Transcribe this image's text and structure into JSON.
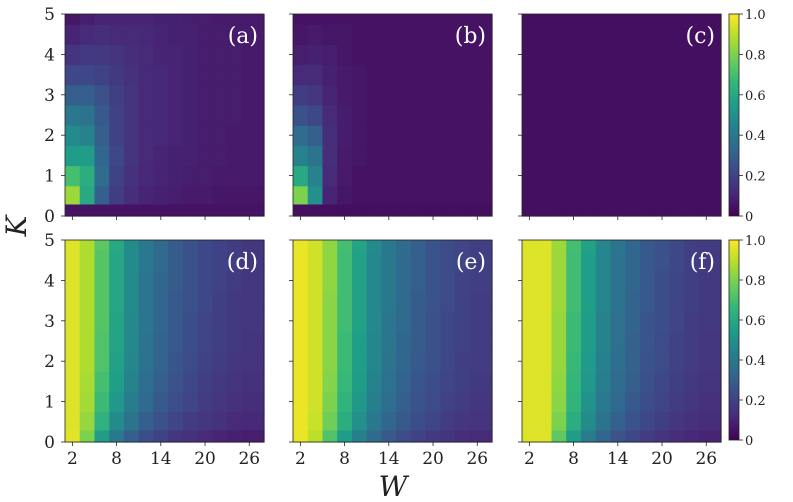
{
  "chart_data": {
    "type": "heatmap",
    "xlabel": "W",
    "ylabel": "K",
    "x_tick_labels": [
      "2",
      "8",
      "14",
      "20",
      "26"
    ],
    "x_tick_values": [
      2,
      8,
      14,
      20,
      26
    ],
    "y_tick_labels": [
      "0",
      "1",
      "2",
      "3",
      "4",
      "5"
    ],
    "y_tick_values": [
      0,
      1,
      2,
      3,
      4,
      5
    ],
    "xlim": [
      1,
      28
    ],
    "ylim": [
      0,
      5
    ],
    "x_centers": [
      2,
      4,
      6,
      8,
      10,
      12,
      14,
      16,
      18,
      20,
      22,
      24,
      26
    ],
    "k_centers": [
      0.1,
      0.5,
      1.0,
      1.5,
      2.0,
      2.5,
      3.0,
      3.5,
      4.0,
      4.5,
      5.0
    ],
    "colorbar": {
      "range": [
        0,
        1
      ],
      "tick_labels": [
        "0",
        "0.2",
        "0.4",
        "0.6",
        "0.8",
        "1.0"
      ],
      "tick_values": [
        0,
        0.2,
        0.4,
        0.6,
        0.8,
        1.0
      ]
    },
    "colormap_stops": [
      "#440154",
      "#482878",
      "#3e4989",
      "#31688e",
      "#26828e",
      "#1f9e89",
      "#35b779",
      "#6ece58",
      "#b5de2b",
      "#fde725"
    ],
    "panels": [
      {
        "label": "(a)",
        "values": [
          [
            0.05,
            0.05,
            0.05,
            0.05,
            0.05,
            0.05,
            0.05,
            0.05,
            0.05,
            0.05,
            0.05,
            0.05,
            0.05
          ],
          [
            0.85,
            0.6,
            0.3,
            0.18,
            0.13,
            0.1,
            0.09,
            0.08,
            0.07,
            0.07,
            0.06,
            0.06,
            0.06
          ],
          [
            0.7,
            0.62,
            0.35,
            0.2,
            0.14,
            0.11,
            0.1,
            0.09,
            0.08,
            0.08,
            0.07,
            0.07,
            0.07
          ],
          [
            0.55,
            0.55,
            0.33,
            0.22,
            0.15,
            0.12,
            0.1,
            0.09,
            0.09,
            0.08,
            0.08,
            0.07,
            0.07
          ],
          [
            0.48,
            0.45,
            0.3,
            0.2,
            0.15,
            0.12,
            0.11,
            0.1,
            0.09,
            0.08,
            0.08,
            0.07,
            0.07
          ],
          [
            0.4,
            0.38,
            0.28,
            0.2,
            0.15,
            0.12,
            0.11,
            0.1,
            0.09,
            0.08,
            0.08,
            0.08,
            0.07
          ],
          [
            0.3,
            0.3,
            0.25,
            0.19,
            0.15,
            0.12,
            0.11,
            0.1,
            0.09,
            0.08,
            0.08,
            0.08,
            0.07
          ],
          [
            0.22,
            0.22,
            0.2,
            0.17,
            0.14,
            0.12,
            0.11,
            0.1,
            0.09,
            0.08,
            0.08,
            0.08,
            0.07
          ],
          [
            0.15,
            0.17,
            0.17,
            0.15,
            0.13,
            0.12,
            0.1,
            0.1,
            0.09,
            0.08,
            0.08,
            0.08,
            0.07
          ],
          [
            0.1,
            0.12,
            0.13,
            0.12,
            0.12,
            0.11,
            0.1,
            0.09,
            0.09,
            0.08,
            0.08,
            0.07,
            0.07
          ],
          [
            0.06,
            0.08,
            0.1,
            0.1,
            0.1,
            0.1,
            0.09,
            0.09,
            0.08,
            0.08,
            0.07,
            0.07,
            0.07
          ]
        ]
      },
      {
        "label": "(b)",
        "values": [
          [
            0.04,
            0.04,
            0.04,
            0.04,
            0.04,
            0.04,
            0.04,
            0.04,
            0.04,
            0.04,
            0.04,
            0.04,
            0.04
          ],
          [
            0.8,
            0.5,
            0.1,
            0.06,
            0.05,
            0.05,
            0.05,
            0.05,
            0.05,
            0.05,
            0.05,
            0.05,
            0.05
          ],
          [
            0.6,
            0.45,
            0.12,
            0.07,
            0.05,
            0.05,
            0.05,
            0.05,
            0.05,
            0.05,
            0.05,
            0.05,
            0.05
          ],
          [
            0.45,
            0.38,
            0.13,
            0.07,
            0.06,
            0.05,
            0.05,
            0.05,
            0.05,
            0.05,
            0.05,
            0.05,
            0.05
          ],
          [
            0.35,
            0.3,
            0.13,
            0.08,
            0.06,
            0.05,
            0.05,
            0.05,
            0.05,
            0.05,
            0.05,
            0.05,
            0.05
          ],
          [
            0.25,
            0.22,
            0.12,
            0.08,
            0.06,
            0.05,
            0.05,
            0.05,
            0.05,
            0.05,
            0.05,
            0.05,
            0.05
          ],
          [
            0.18,
            0.16,
            0.1,
            0.07,
            0.06,
            0.05,
            0.05,
            0.05,
            0.05,
            0.05,
            0.05,
            0.05,
            0.05
          ],
          [
            0.12,
            0.12,
            0.09,
            0.07,
            0.06,
            0.05,
            0.05,
            0.05,
            0.05,
            0.05,
            0.05,
            0.05,
            0.05
          ],
          [
            0.08,
            0.09,
            0.08,
            0.06,
            0.05,
            0.05,
            0.05,
            0.05,
            0.05,
            0.05,
            0.05,
            0.05,
            0.05
          ],
          [
            0.06,
            0.07,
            0.06,
            0.06,
            0.05,
            0.05,
            0.05,
            0.05,
            0.05,
            0.05,
            0.05,
            0.05,
            0.05
          ],
          [
            0.05,
            0.05,
            0.05,
            0.05,
            0.05,
            0.05,
            0.05,
            0.05,
            0.05,
            0.05,
            0.05,
            0.05,
            0.05
          ]
        ]
      },
      {
        "label": "(c)",
        "values": [
          [
            0.04,
            0.04,
            0.04,
            0.04,
            0.04,
            0.04,
            0.04,
            0.04,
            0.04,
            0.04,
            0.04,
            0.04,
            0.04
          ],
          [
            0.04,
            0.04,
            0.04,
            0.04,
            0.04,
            0.04,
            0.04,
            0.04,
            0.04,
            0.04,
            0.04,
            0.04,
            0.04
          ],
          [
            0.04,
            0.04,
            0.04,
            0.04,
            0.04,
            0.04,
            0.04,
            0.04,
            0.04,
            0.04,
            0.04,
            0.04,
            0.04
          ],
          [
            0.04,
            0.04,
            0.04,
            0.04,
            0.04,
            0.04,
            0.04,
            0.04,
            0.04,
            0.04,
            0.04,
            0.04,
            0.04
          ],
          [
            0.04,
            0.04,
            0.04,
            0.04,
            0.04,
            0.04,
            0.04,
            0.04,
            0.04,
            0.04,
            0.04,
            0.04,
            0.04
          ],
          [
            0.04,
            0.04,
            0.04,
            0.04,
            0.04,
            0.04,
            0.04,
            0.04,
            0.04,
            0.04,
            0.04,
            0.04,
            0.04
          ],
          [
            0.04,
            0.04,
            0.04,
            0.04,
            0.04,
            0.04,
            0.04,
            0.04,
            0.04,
            0.04,
            0.04,
            0.04,
            0.04
          ],
          [
            0.04,
            0.04,
            0.04,
            0.04,
            0.04,
            0.04,
            0.04,
            0.04,
            0.04,
            0.04,
            0.04,
            0.04,
            0.04
          ],
          [
            0.04,
            0.04,
            0.04,
            0.04,
            0.04,
            0.04,
            0.04,
            0.04,
            0.04,
            0.04,
            0.04,
            0.04,
            0.04
          ],
          [
            0.04,
            0.04,
            0.04,
            0.04,
            0.04,
            0.04,
            0.04,
            0.04,
            0.04,
            0.04,
            0.04,
            0.04,
            0.04
          ],
          [
            0.04,
            0.04,
            0.04,
            0.04,
            0.04,
            0.04,
            0.04,
            0.04,
            0.04,
            0.04,
            0.04,
            0.04,
            0.04
          ]
        ]
      },
      {
        "label": "(d)",
        "values": [
          [
            0.96,
            0.8,
            0.55,
            0.4,
            0.3,
            0.24,
            0.2,
            0.16,
            0.14,
            0.12,
            0.1,
            0.09,
            0.08
          ],
          [
            0.95,
            0.84,
            0.64,
            0.48,
            0.38,
            0.3,
            0.25,
            0.21,
            0.18,
            0.16,
            0.14,
            0.12,
            0.11
          ],
          [
            0.95,
            0.86,
            0.68,
            0.53,
            0.42,
            0.34,
            0.28,
            0.24,
            0.21,
            0.18,
            0.16,
            0.14,
            0.13
          ],
          [
            0.95,
            0.87,
            0.7,
            0.56,
            0.45,
            0.36,
            0.3,
            0.26,
            0.22,
            0.19,
            0.17,
            0.15,
            0.14
          ],
          [
            0.95,
            0.88,
            0.72,
            0.57,
            0.46,
            0.38,
            0.32,
            0.27,
            0.23,
            0.2,
            0.18,
            0.16,
            0.15
          ],
          [
            0.95,
            0.88,
            0.72,
            0.58,
            0.47,
            0.38,
            0.32,
            0.28,
            0.24,
            0.21,
            0.19,
            0.17,
            0.15
          ],
          [
            0.95,
            0.88,
            0.73,
            0.58,
            0.47,
            0.39,
            0.33,
            0.28,
            0.24,
            0.21,
            0.19,
            0.17,
            0.16
          ],
          [
            0.95,
            0.88,
            0.73,
            0.59,
            0.48,
            0.39,
            0.33,
            0.28,
            0.25,
            0.22,
            0.19,
            0.17,
            0.16
          ],
          [
            0.95,
            0.88,
            0.73,
            0.59,
            0.48,
            0.39,
            0.33,
            0.29,
            0.25,
            0.22,
            0.2,
            0.18,
            0.16
          ],
          [
            0.95,
            0.88,
            0.73,
            0.59,
            0.48,
            0.4,
            0.34,
            0.29,
            0.25,
            0.22,
            0.2,
            0.18,
            0.16
          ],
          [
            0.95,
            0.88,
            0.74,
            0.6,
            0.48,
            0.4,
            0.34,
            0.29,
            0.25,
            0.22,
            0.2,
            0.18,
            0.16
          ]
        ]
      },
      {
        "label": "(e)",
        "values": [
          [
            0.97,
            0.9,
            0.72,
            0.55,
            0.43,
            0.34,
            0.28,
            0.23,
            0.2,
            0.17,
            0.15,
            0.13,
            0.12
          ],
          [
            0.97,
            0.92,
            0.78,
            0.62,
            0.5,
            0.4,
            0.33,
            0.28,
            0.24,
            0.21,
            0.18,
            0.16,
            0.15
          ],
          [
            0.97,
            0.93,
            0.8,
            0.65,
            0.53,
            0.43,
            0.36,
            0.3,
            0.26,
            0.23,
            0.2,
            0.18,
            0.16
          ],
          [
            0.97,
            0.93,
            0.81,
            0.67,
            0.55,
            0.45,
            0.37,
            0.32,
            0.27,
            0.24,
            0.21,
            0.19,
            0.17
          ],
          [
            0.97,
            0.93,
            0.82,
            0.68,
            0.56,
            0.46,
            0.38,
            0.33,
            0.28,
            0.25,
            0.22,
            0.19,
            0.18
          ],
          [
            0.97,
            0.93,
            0.82,
            0.68,
            0.56,
            0.46,
            0.39,
            0.33,
            0.29,
            0.25,
            0.22,
            0.2,
            0.18
          ],
          [
            0.97,
            0.93,
            0.82,
            0.69,
            0.57,
            0.47,
            0.39,
            0.34,
            0.29,
            0.25,
            0.22,
            0.2,
            0.18
          ],
          [
            0.97,
            0.93,
            0.82,
            0.69,
            0.57,
            0.47,
            0.4,
            0.34,
            0.29,
            0.26,
            0.23,
            0.2,
            0.18
          ],
          [
            0.97,
            0.93,
            0.83,
            0.69,
            0.57,
            0.47,
            0.4,
            0.34,
            0.3,
            0.26,
            0.23,
            0.2,
            0.19
          ],
          [
            0.97,
            0.93,
            0.83,
            0.69,
            0.57,
            0.47,
            0.4,
            0.34,
            0.3,
            0.26,
            0.23,
            0.21,
            0.19
          ],
          [
            0.97,
            0.93,
            0.83,
            0.7,
            0.58,
            0.48,
            0.4,
            0.35,
            0.3,
            0.26,
            0.23,
            0.21,
            0.19
          ]
        ]
      },
      {
        "label": "(f)",
        "values": [
          [
            0.95,
            0.95,
            0.75,
            0.55,
            0.42,
            0.33,
            0.26,
            0.22,
            0.18,
            0.15,
            0.13,
            0.11,
            0.1
          ],
          [
            0.95,
            0.95,
            0.8,
            0.62,
            0.48,
            0.38,
            0.31,
            0.26,
            0.22,
            0.19,
            0.16,
            0.14,
            0.13
          ],
          [
            0.95,
            0.95,
            0.82,
            0.65,
            0.51,
            0.41,
            0.34,
            0.28,
            0.24,
            0.21,
            0.18,
            0.16,
            0.14
          ],
          [
            0.95,
            0.95,
            0.83,
            0.66,
            0.53,
            0.43,
            0.35,
            0.3,
            0.25,
            0.22,
            0.19,
            0.17,
            0.15
          ],
          [
            0.95,
            0.95,
            0.84,
            0.67,
            0.54,
            0.44,
            0.36,
            0.31,
            0.26,
            0.23,
            0.2,
            0.18,
            0.16
          ],
          [
            0.95,
            0.95,
            0.84,
            0.68,
            0.55,
            0.45,
            0.37,
            0.31,
            0.27,
            0.23,
            0.2,
            0.18,
            0.16
          ],
          [
            0.95,
            0.95,
            0.84,
            0.68,
            0.55,
            0.45,
            0.37,
            0.32,
            0.27,
            0.24,
            0.21,
            0.18,
            0.17
          ],
          [
            0.95,
            0.95,
            0.85,
            0.69,
            0.56,
            0.46,
            0.38,
            0.32,
            0.28,
            0.24,
            0.21,
            0.19,
            0.17
          ],
          [
            0.95,
            0.95,
            0.85,
            0.69,
            0.56,
            0.46,
            0.38,
            0.33,
            0.28,
            0.24,
            0.21,
            0.19,
            0.17
          ],
          [
            0.95,
            0.95,
            0.85,
            0.69,
            0.56,
            0.46,
            0.38,
            0.33,
            0.28,
            0.25,
            0.22,
            0.19,
            0.17
          ],
          [
            0.95,
            0.95,
            0.85,
            0.7,
            0.57,
            0.46,
            0.39,
            0.33,
            0.28,
            0.25,
            0.22,
            0.19,
            0.18
          ]
        ]
      }
    ]
  }
}
